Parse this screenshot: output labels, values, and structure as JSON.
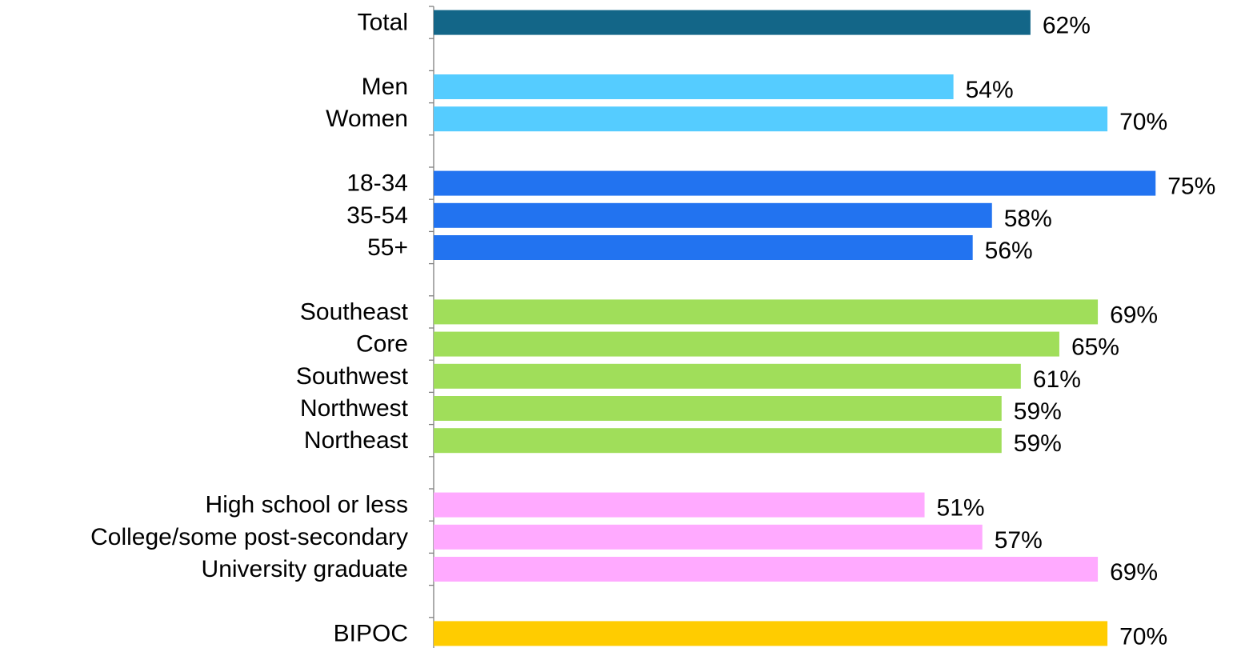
{
  "chart_data": {
    "type": "bar",
    "orientation": "horizontal",
    "xlim": [
      0,
      75
    ],
    "grid": false,
    "legend": "none",
    "value_format": "percent",
    "groups": [
      {
        "color": "#136688",
        "items": [
          {
            "category": "Total",
            "value": 62,
            "label": "62%"
          }
        ]
      },
      {
        "color": "#55CCFF",
        "items": [
          {
            "category": "Men",
            "value": 54,
            "label": "54%"
          },
          {
            "category": "Women",
            "value": 70,
            "label": "70%"
          }
        ]
      },
      {
        "color": "#2273F0",
        "items": [
          {
            "category": "18-34",
            "value": 75,
            "label": "75%"
          },
          {
            "category": "35-54",
            "value": 58,
            "label": "58%"
          },
          {
            "category": "55+",
            "value": 56,
            "label": "56%"
          }
        ]
      },
      {
        "color": "#A0DE5A",
        "items": [
          {
            "category": "Southeast",
            "value": 69,
            "label": "69%"
          },
          {
            "category": "Core",
            "value": 65,
            "label": "65%"
          },
          {
            "category": "Southwest",
            "value": 61,
            "label": "61%"
          },
          {
            "category": "Northwest",
            "value": 59,
            "label": "59%"
          },
          {
            "category": "Northeast",
            "value": 59,
            "label": "59%"
          }
        ]
      },
      {
        "color": "#FFAAFF",
        "items": [
          {
            "category": "High school or less",
            "value": 51,
            "label": "51%"
          },
          {
            "category": "College/some post-secondary",
            "value": 57,
            "label": "57%"
          },
          {
            "category": "University graduate",
            "value": 69,
            "label": "69%"
          }
        ]
      },
      {
        "color": "#FFCC00",
        "items": [
          {
            "category": "BIPOC",
            "value": 70,
            "label": "70%"
          }
        ]
      }
    ]
  }
}
